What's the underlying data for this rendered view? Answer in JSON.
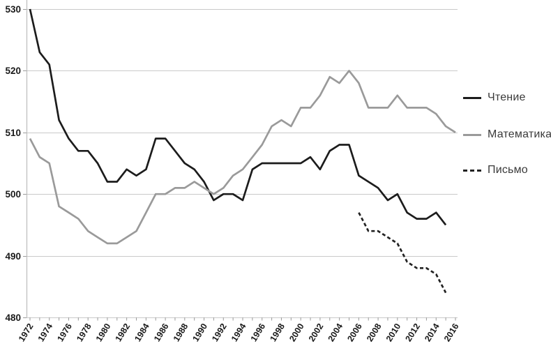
{
  "figure": {
    "background": "#ffffff"
  },
  "chart_data": {
    "type": "line",
    "title": "",
    "xlabel": "",
    "ylabel": "",
    "xlim": [
      1972,
      2016
    ],
    "ylim": [
      480,
      530
    ],
    "grid": true,
    "legend_position": "right",
    "y_tick_labels": [
      "480",
      "490",
      "500",
      "510",
      "520",
      "530"
    ],
    "y_tick_values": [
      480,
      490,
      500,
      510,
      520,
      530
    ],
    "x_tick_labels": [
      "1972",
      "1974",
      "1976",
      "1978",
      "1980",
      "1982",
      "1984",
      "1986",
      "1988",
      "1990",
      "1992",
      "1994",
      "1996",
      "1998",
      "2000",
      "2002",
      "2004",
      "2006",
      "2008",
      "2010",
      "2012",
      "2014",
      "2016"
    ],
    "x_minor_ticks_every_year": true,
    "colors": {
      "grid": "#c9c9c9",
      "axis": "#bdbdbd",
      "tick": "#9a9a9a",
      "tick_label": "#1a1a1a",
      "legend_text": "#3a3a3a",
      "reading_line": "#1c1c1c",
      "math_line": "#9a9a9a",
      "writing_line": "#222222"
    },
    "series": [
      {
        "name": "Чтение",
        "color": "#1c1c1c",
        "style": "solid",
        "start_x": 1972,
        "x_step": 1,
        "values": [
          530,
          523,
          521,
          512,
          509,
          507,
          507,
          505,
          502,
          502,
          504,
          503,
          504,
          509,
          509,
          507,
          505,
          504,
          502,
          499,
          500,
          500,
          499,
          504,
          505,
          505,
          505,
          505,
          505,
          506,
          504,
          507,
          508,
          508,
          503,
          502,
          501,
          499,
          500,
          497,
          496,
          496,
          497,
          495
        ]
      },
      {
        "name": "Математика",
        "color": "#9a9a9a",
        "style": "solid",
        "start_x": 1972,
        "x_step": 1,
        "values": [
          509,
          506,
          505,
          498,
          497,
          496,
          494,
          493,
          492,
          492,
          493,
          494,
          497,
          500,
          500,
          501,
          501,
          502,
          501,
          500,
          501,
          503,
          504,
          506,
          508,
          511,
          512,
          511,
          514,
          514,
          516,
          519,
          518,
          520,
          518,
          514,
          514,
          514,
          516,
          514,
          514,
          514,
          513,
          511,
          510
        ]
      },
      {
        "name": "Письмо",
        "color": "#222222",
        "style": "dashed",
        "start_x": 2006,
        "x_step": 1,
        "values": [
          497,
          494,
          494,
          493,
          492,
          489,
          488,
          488,
          487,
          484
        ]
      }
    ]
  },
  "legend": {
    "items": [
      {
        "label": "Чтение"
      },
      {
        "label": "Математика"
      },
      {
        "label": "Письмо"
      }
    ]
  }
}
